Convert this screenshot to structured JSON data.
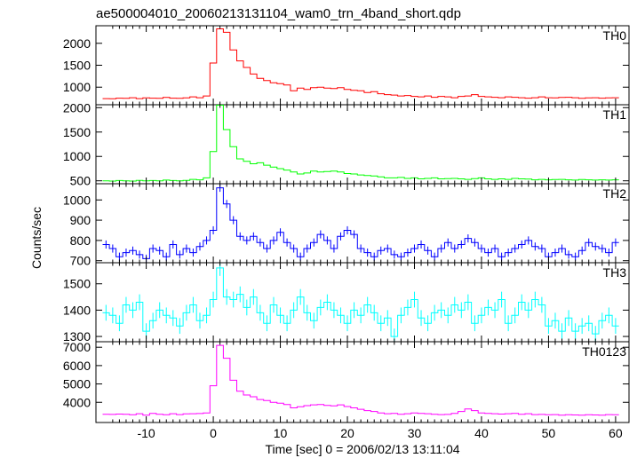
{
  "chart_data": {
    "type": "line",
    "title": "ae500004010_20060213131104_wam0_trn_4band_short.qdp",
    "xlabel": "Time [sec] 0 = 2006/02/13 13:11:04",
    "ylabel": "Counts/sec",
    "xlim": [
      -17.5,
      62
    ],
    "x_ticks": [
      -10,
      0,
      10,
      20,
      30,
      40,
      50,
      60
    ],
    "bin_width": 1.0,
    "grid": false,
    "panels": [
      {
        "name": "TH0",
        "color": "#ff0000",
        "ylim": [
          600,
          2400
        ],
        "y_ticks": [
          1000,
          1500,
          2000
        ],
        "errors": false,
        "x": [
          -16,
          -15,
          -14,
          -13,
          -12,
          -11,
          -10,
          -9,
          -8,
          -7,
          -6,
          -5,
          -4,
          -3,
          -2,
          -1,
          0,
          1,
          2,
          3,
          4,
          5,
          6,
          7,
          8,
          9,
          10,
          11,
          12,
          13,
          14,
          15,
          16,
          17,
          18,
          19,
          20,
          21,
          22,
          23,
          24,
          25,
          26,
          27,
          28,
          29,
          30,
          31,
          32,
          33,
          34,
          35,
          36,
          37,
          38,
          39,
          40,
          41,
          42,
          43,
          44,
          45,
          46,
          47,
          48,
          49,
          50,
          51,
          52,
          53,
          54,
          55,
          56,
          57,
          58,
          59,
          60
        ],
        "values": [
          740,
          735,
          750,
          745,
          760,
          740,
          755,
          750,
          745,
          765,
          750,
          745,
          755,
          780,
          760,
          800,
          1550,
          2330,
          2250,
          1850,
          1600,
          1450,
          1300,
          1200,
          1150,
          1100,
          1080,
          1050,
          920,
          980,
          950,
          990,
          1000,
          980,
          970,
          990,
          950,
          930,
          920,
          880,
          900,
          850,
          830,
          820,
          800,
          810,
          790,
          780,
          800,
          770,
          790,
          780,
          760,
          790,
          800,
          830,
          790,
          780,
          770,
          760,
          780,
          770,
          760,
          750,
          760,
          780,
          760,
          755,
          765,
          770,
          760,
          745,
          755,
          760,
          750,
          755,
          760
        ]
      },
      {
        "name": "TH1",
        "color": "#00ff00",
        "ylim": [
          440,
          2060
        ],
        "y_ticks": [
          500,
          1000,
          1500,
          2000
        ],
        "errors": false,
        "x": [
          -16,
          -15,
          -14,
          -13,
          -12,
          -11,
          -10,
          -9,
          -8,
          -7,
          -6,
          -5,
          -4,
          -3,
          -2,
          -1,
          0,
          1,
          2,
          3,
          4,
          5,
          6,
          7,
          8,
          9,
          10,
          11,
          12,
          13,
          14,
          15,
          16,
          17,
          18,
          19,
          20,
          21,
          22,
          23,
          24,
          25,
          26,
          27,
          28,
          29,
          30,
          31,
          32,
          33,
          34,
          35,
          36,
          37,
          38,
          39,
          40,
          41,
          42,
          43,
          44,
          45,
          46,
          47,
          48,
          49,
          50,
          51,
          52,
          53,
          54,
          55,
          56,
          57,
          58,
          59,
          60
        ],
        "values": [
          500,
          495,
          505,
          500,
          495,
          510,
          500,
          505,
          500,
          515,
          505,
          500,
          510,
          530,
          520,
          560,
          1100,
          2050,
          1550,
          1200,
          950,
          900,
          850,
          870,
          820,
          780,
          750,
          720,
          680,
          640,
          660,
          700,
          680,
          690,
          700,
          680,
          650,
          640,
          620,
          610,
          600,
          580,
          560,
          560,
          570,
          550,
          560,
          540,
          550,
          560,
          540,
          545,
          550,
          540,
          530,
          545,
          560,
          540,
          530,
          540,
          530,
          550,
          540,
          535,
          520,
          530,
          520,
          525,
          530,
          520,
          515,
          525,
          520,
          515,
          520,
          515,
          520
        ]
      },
      {
        "name": "TH2",
        "color": "#0000ff",
        "ylim": [
          690,
          1080
        ],
        "y_ticks": [
          700,
          800,
          900,
          1000
        ],
        "errors": true,
        "err": 20,
        "x": [
          -16,
          -15,
          -14,
          -13,
          -12,
          -11,
          -10,
          -9,
          -8,
          -7,
          -6,
          -5,
          -4,
          -3,
          -2,
          -1,
          0,
          1,
          2,
          3,
          4,
          5,
          6,
          7,
          8,
          9,
          10,
          11,
          12,
          13,
          14,
          15,
          16,
          17,
          18,
          19,
          20,
          21,
          22,
          23,
          24,
          25,
          26,
          27,
          28,
          29,
          30,
          31,
          32,
          33,
          34,
          35,
          36,
          37,
          38,
          39,
          40,
          41,
          42,
          43,
          44,
          45,
          46,
          47,
          48,
          49,
          50,
          51,
          52,
          53,
          54,
          55,
          56,
          57,
          58,
          59,
          60
        ],
        "values": [
          780,
          760,
          720,
          740,
          750,
          730,
          710,
          760,
          750,
          720,
          780,
          730,
          760,
          740,
          770,
          800,
          850,
          1060,
          980,
          900,
          820,
          800,
          820,
          790,
          760,
          800,
          840,
          790,
          760,
          720,
          760,
          790,
          830,
          800,
          760,
          820,
          850,
          830,
          760,
          740,
          720,
          750,
          760,
          730,
          720,
          740,
          760,
          780,
          750,
          720,
          760,
          790,
          760,
          780,
          810,
          790,
          760,
          740,
          760,
          720,
          740,
          760,
          780,
          800,
          770,
          760,
          720,
          740,
          760,
          730,
          720,
          750,
          790,
          770,
          760,
          740,
          790
        ]
      },
      {
        "name": "TH3",
        "color": "#00ffff",
        "ylim": [
          1280,
          1580
        ],
        "y_ticks": [
          1300,
          1400,
          1500
        ],
        "errors": true,
        "err": 30,
        "x": [
          -16,
          -15,
          -14,
          -13,
          -12,
          -11,
          -10,
          -9,
          -8,
          -7,
          -6,
          -5,
          -4,
          -3,
          -2,
          -1,
          0,
          1,
          2,
          3,
          4,
          5,
          6,
          7,
          8,
          9,
          10,
          11,
          12,
          13,
          14,
          15,
          16,
          17,
          18,
          19,
          20,
          21,
          22,
          23,
          24,
          25,
          26,
          27,
          28,
          29,
          30,
          31,
          32,
          33,
          34,
          35,
          36,
          37,
          38,
          39,
          40,
          41,
          42,
          43,
          44,
          45,
          46,
          47,
          48,
          49,
          50,
          51,
          52,
          53,
          54,
          55,
          56,
          57,
          58,
          59,
          60
        ],
        "values": [
          1390,
          1380,
          1350,
          1420,
          1400,
          1430,
          1320,
          1360,
          1400,
          1380,
          1370,
          1340,
          1390,
          1420,
          1360,
          1380,
          1440,
          1560,
          1450,
          1440,
          1460,
          1410,
          1450,
          1390,
          1350,
          1420,
          1380,
          1350,
          1400,
          1450,
          1390,
          1360,
          1410,
          1430,
          1400,
          1380,
          1350,
          1400,
          1380,
          1420,
          1390,
          1350,
          1370,
          1300,
          1380,
          1410,
          1440,
          1370,
          1350,
          1390,
          1400,
          1380,
          1420,
          1400,
          1430,
          1350,
          1380,
          1410,
          1400,
          1440,
          1350,
          1380,
          1430,
          1400,
          1440,
          1420,
          1340,
          1360,
          1320,
          1370,
          1320,
          1340,
          1350,
          1310,
          1360,
          1380,
          1340
        ]
      },
      {
        "name": "TH0123",
        "color": "#ff00ff",
        "ylim": [
          2900,
          7300
        ],
        "y_ticks": [
          4000,
          5000,
          6000,
          7000
        ],
        "errors": false,
        "x": [
          -16,
          -15,
          -14,
          -13,
          -12,
          -11,
          -10,
          -9,
          -8,
          -7,
          -6,
          -5,
          -4,
          -3,
          -2,
          -1,
          0,
          1,
          2,
          3,
          4,
          5,
          6,
          7,
          8,
          9,
          10,
          11,
          12,
          13,
          14,
          15,
          16,
          17,
          18,
          19,
          20,
          21,
          22,
          23,
          24,
          25,
          26,
          27,
          28,
          29,
          30,
          31,
          32,
          33,
          34,
          35,
          36,
          37,
          38,
          39,
          40,
          41,
          42,
          43,
          44,
          45,
          46,
          47,
          48,
          49,
          50,
          51,
          52,
          53,
          54,
          55,
          56,
          57,
          58,
          59,
          60
        ],
        "values": [
          3350,
          3340,
          3360,
          3350,
          3320,
          3380,
          3300,
          3400,
          3350,
          3320,
          3380,
          3330,
          3370,
          3380,
          3390,
          3420,
          4900,
          7100,
          6400,
          5200,
          4600,
          4400,
          4300,
          4150,
          4100,
          4000,
          3950,
          3880,
          3700,
          3760,
          3820,
          3860,
          3880,
          3830,
          3810,
          3860,
          3770,
          3700,
          3620,
          3550,
          3500,
          3420,
          3380,
          3400,
          3350,
          3380,
          3420,
          3400,
          3380,
          3350,
          3330,
          3340,
          3400,
          3500,
          3640,
          3550,
          3420,
          3400,
          3380,
          3360,
          3380,
          3400,
          3350,
          3380,
          3330,
          3340,
          3320,
          3330,
          3300,
          3320,
          3310,
          3300,
          3320,
          3310,
          3300,
          3330,
          3320
        ]
      }
    ]
  }
}
